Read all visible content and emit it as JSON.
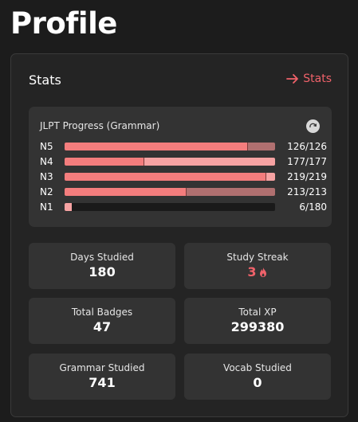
{
  "page_title": "Profile",
  "stats_card": {
    "title": "Stats",
    "link_label": "Stats",
    "jlpt": {
      "title": "JLPT Progress (Grammar)",
      "levels": [
        {
          "label": "N5",
          "count": "126/126",
          "completed": 1.0,
          "mastered": 0.87
        },
        {
          "label": "N4",
          "count": "177/177",
          "completed": 1.0,
          "mastered": 0.38
        },
        {
          "label": "N3",
          "count": "219/219",
          "completed": 1.0,
          "mastered": 0.96
        },
        {
          "label": "N2",
          "count": "213/213",
          "completed": 1.0,
          "mastered": 0.58
        },
        {
          "label": "N1",
          "count": "6/180",
          "completed": 0.033,
          "mastered": 0.0
        }
      ]
    },
    "tiles": [
      {
        "label": "Days Studied",
        "value": "180"
      },
      {
        "label": "Study Streak",
        "value": "3"
      },
      {
        "label": "Total Badges",
        "value": "47"
      },
      {
        "label": "Total XP",
        "value": "299380"
      },
      {
        "label": "Grammar Studied",
        "value": "741"
      },
      {
        "label": "Vocab Studied",
        "value": "0"
      }
    ]
  },
  "colors": {
    "accent": "#f0626a",
    "bar_primary": "#f47d7d",
    "bar_secondary": "#f7a3a3",
    "bar_dark": "#b07070"
  },
  "icons": {
    "link": "arrow-right-icon",
    "refresh": "refresh-icon",
    "streak": "fire-icon"
  }
}
